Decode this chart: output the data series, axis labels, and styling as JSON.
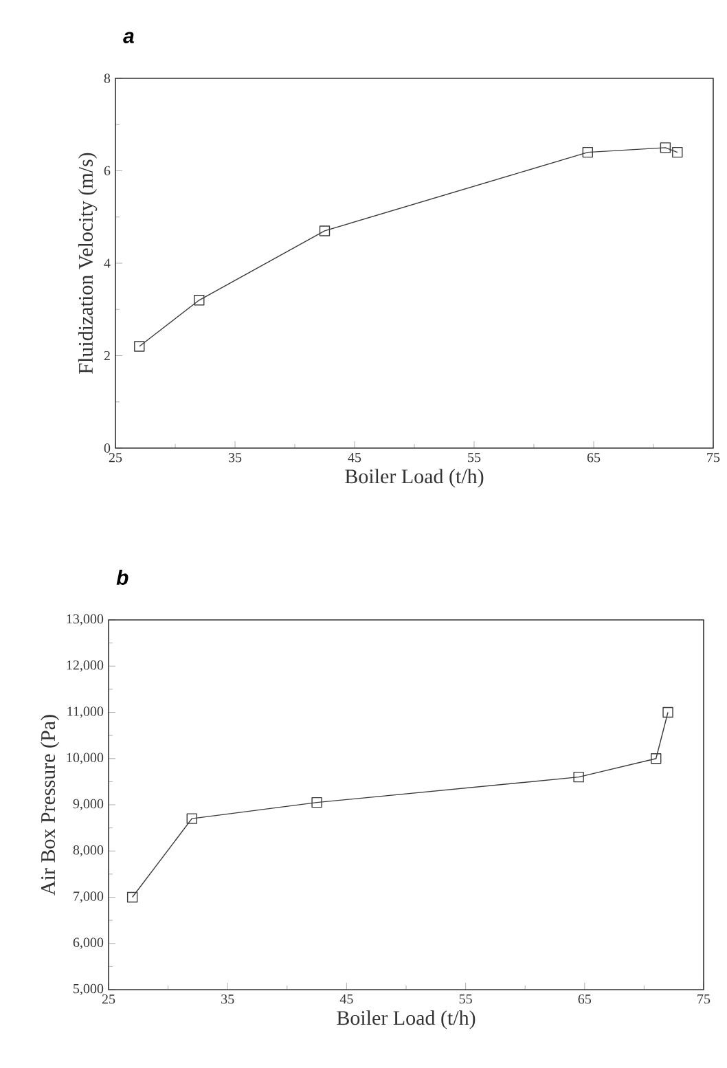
{
  "chart_data": [
    {
      "type": "line",
      "title": "a",
      "xlabel": "Boiler Load (t/h)",
      "ylabel": "Fluidization Velocity (m/s)",
      "x": [
        27,
        32,
        42.5,
        64.5,
        71,
        72
      ],
      "values": [
        2.2,
        3.2,
        4.7,
        6.4,
        6.5,
        6.4
      ],
      "color": "#3a3a3a",
      "marker": "square",
      "line_style": "solid",
      "xlim": [
        25,
        75
      ],
      "xticks": [
        25,
        35,
        45,
        55,
        65,
        75
      ],
      "ylim": [
        0,
        8
      ],
      "yticks": [
        0,
        2,
        4,
        6,
        8
      ]
    },
    {
      "type": "line",
      "title": "b",
      "xlabel": "Boiler Load (t/h)",
      "ylabel": "Air Box Pressure (Pa)",
      "x": [
        27,
        32,
        42.5,
        64.5,
        71,
        72
      ],
      "values": [
        7000,
        8700,
        9050,
        9600,
        10000,
        11000
      ],
      "color": "#3a3a3a",
      "marker": "square",
      "line_style": "solid",
      "xlim": [
        25,
        75
      ],
      "xticks": [
        25,
        35,
        45,
        55,
        65,
        75
      ],
      "ylim": [
        5000,
        13000
      ],
      "yticks": [
        {
          "value": 5000,
          "label": "5,000"
        },
        {
          "value": 6000,
          "label": "6,000"
        },
        {
          "value": 7000,
          "label": "7,000"
        },
        {
          "value": 8000,
          "label": "8,000"
        },
        {
          "value": 9000,
          "label": "9,000"
        },
        {
          "value": 10000,
          "label": "10,000"
        },
        {
          "value": 11000,
          "label": "11,000"
        },
        {
          "value": 12000,
          "label": "12,000"
        },
        {
          "value": 13000,
          "label": "13,000"
        }
      ]
    }
  ]
}
